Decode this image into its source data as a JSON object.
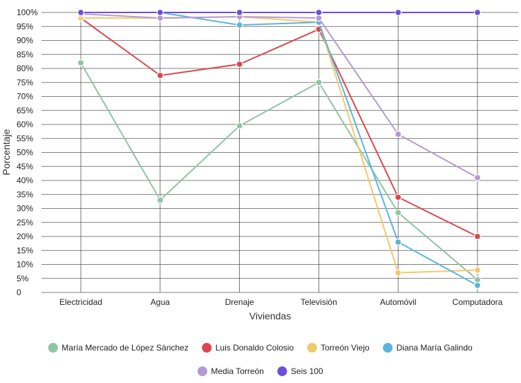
{
  "chart_data": {
    "type": "line",
    "title": "",
    "xlabel": "Viviendas",
    "ylabel": "Porcentaje",
    "categories": [
      "Electricidad",
      "Agua",
      "Drenaje",
      "Televisión",
      "Automóvil",
      "Computadora"
    ],
    "y_ticks": [
      "0",
      "5%",
      "10%",
      "15%",
      "20%",
      "25%",
      "30%",
      "35%",
      "40%",
      "45%",
      "50%",
      "55%",
      "60%",
      "65%",
      "70%",
      "75%",
      "80%",
      "85%",
      "90%",
      "95%",
      "100%"
    ],
    "ylim": [
      0,
      100
    ],
    "grid": true,
    "legend_position": "bottom",
    "series": [
      {
        "name": "María Mercado de López Sánchez",
        "color": "#8fc4a4",
        "values": [
          82,
          33,
          59.5,
          75,
          28.5,
          4.5
        ]
      },
      {
        "name": "Luis Donaldo Colosio",
        "color": "#d9484f",
        "values": [
          98,
          77.5,
          81.5,
          94,
          34,
          20
        ]
      },
      {
        "name": "Torreón Viejo",
        "color": "#f0c96a",
        "values": [
          98,
          98,
          98.5,
          96.5,
          7,
          8
        ]
      },
      {
        "name": "Diana María Galindo",
        "color": "#5ab4de",
        "values": [
          100,
          100,
          95.5,
          96.5,
          18,
          2.5
        ]
      },
      {
        "name": "Media Torreón",
        "color": "#b39ad2",
        "values": [
          99.5,
          98,
          98.5,
          98,
          56.5,
          41
        ]
      },
      {
        "name": "Seis 100",
        "color": "#6e4fd8",
        "values": [
          100,
          100,
          100,
          100,
          100,
          100
        ]
      }
    ]
  }
}
